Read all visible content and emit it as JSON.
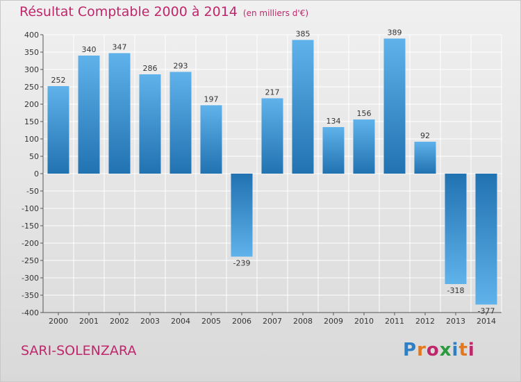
{
  "title": "Résultat Comptable 2000 à 2014",
  "subtitle": "(en milliers d'€)",
  "region": "SARI-SOLENZARA",
  "brand": {
    "letters": [
      {
        "char": "P",
        "color": "#2f7fc4"
      },
      {
        "char": "r",
        "color": "#e2791e"
      },
      {
        "char": "o",
        "color": "#c0266b"
      },
      {
        "char": "x",
        "color": "#2a9a3c"
      },
      {
        "char": "i",
        "color": "#2f7fc4"
      },
      {
        "char": "t",
        "color": "#e2791e"
      },
      {
        "char": "i",
        "color": "#c0266b"
      }
    ]
  },
  "colors": {
    "title": "#c0266b",
    "bar_dark": "#2172b1",
    "bar_light": "#5fb2ea",
    "grid": "#ffffff",
    "axis": "#555555",
    "text": "#333333"
  },
  "chart_data": {
    "type": "bar",
    "categories": [
      "2000",
      "2001",
      "2002",
      "2003",
      "2004",
      "2005",
      "2006",
      "2007",
      "2008",
      "2009",
      "2010",
      "2011",
      "2012",
      "2013",
      "2014"
    ],
    "values": [
      252,
      340,
      347,
      286,
      293,
      197,
      -239,
      217,
      385,
      134,
      156,
      389,
      92,
      -318,
      -377
    ],
    "ylim": [
      -400,
      400
    ],
    "yticks": [
      400,
      350,
      300,
      250,
      200,
      150,
      100,
      50,
      0,
      -50,
      -100,
      -150,
      -200,
      -250,
      -300,
      -350,
      -400
    ],
    "grid": true,
    "legend": "none"
  }
}
